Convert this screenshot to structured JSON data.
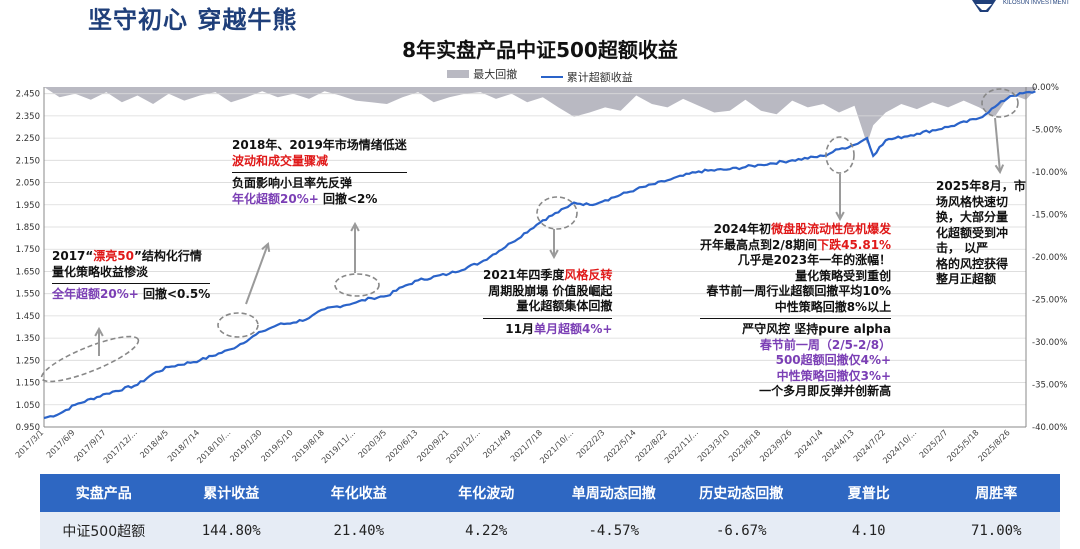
{
  "header": {
    "page_title": "坚守初心 穿越牛熊",
    "logo_text": "KILOSUN INVESTMENT"
  },
  "chart_data": {
    "type": "line",
    "title": "8年实盘产品中证500超额收益",
    "legend": [
      "最大回撤",
      "累计超额收益"
    ],
    "colors": {
      "line": "#2a63c9",
      "drawdown": "#b9b9c2",
      "grid": "#d9d9d9"
    },
    "y_left": {
      "ticks": [
        "0.950",
        "1.050",
        "1.150",
        "1.250",
        "1.350",
        "1.450",
        "1.550",
        "1.650",
        "1.750",
        "1.850",
        "1.950",
        "2.050",
        "2.150",
        "2.250",
        "2.350",
        "2.450"
      ],
      "range": [
        0.95,
        2.48
      ]
    },
    "y_right": {
      "ticks": [
        "0.00%",
        "-5.00%",
        "-10.00%",
        "-15.00%",
        "-20.00%",
        "-25.00%",
        "-30.00%",
        "-35.00%",
        "-40.00%"
      ],
      "range": [
        -40,
        0
      ]
    },
    "x_ticks": [
      "2017/3/1",
      "2017/6/9",
      "2017/9/17",
      "2017/12/...",
      "2018/4/5",
      "2018/7/14",
      "2018/10/...",
      "2019/1/30",
      "2019/5/10",
      "2019/8/18",
      "2019/11/...",
      "2020/3/5",
      "2020/6/13",
      "2020/9/21",
      "2020/12/...",
      "2021/4/9",
      "2021/7/18",
      "2021/10/...",
      "2022/2/3",
      "2022/5/14",
      "2022/8/22",
      "2022/11/...",
      "2023/3/10",
      "2023/6/18",
      "2023/9/26",
      "2024/1/4",
      "2024/4/13",
      "2024/7/22",
      "2024/10/...",
      "2025/2/7",
      "2025/5/18",
      "2025/8/26"
    ],
    "nav_points": [
      [
        0,
        0.99
      ],
      [
        0.5,
        1.01
      ],
      [
        1,
        1.05
      ],
      [
        2,
        1.1
      ],
      [
        3,
        1.14
      ],
      [
        3.5,
        1.19
      ],
      [
        4,
        1.22
      ],
      [
        5,
        1.25
      ],
      [
        6,
        1.3
      ],
      [
        7,
        1.38
      ],
      [
        7.5,
        1.41
      ],
      [
        8,
        1.42
      ],
      [
        8.5,
        1.44
      ],
      [
        9,
        1.48
      ],
      [
        10,
        1.51
      ],
      [
        10.5,
        1.53
      ],
      [
        11,
        1.54
      ],
      [
        11.5,
        1.58
      ],
      [
        12,
        1.61
      ],
      [
        13,
        1.64
      ],
      [
        14,
        1.69
      ],
      [
        15,
        1.78
      ],
      [
        16,
        1.88
      ],
      [
        16.8,
        1.94
      ],
      [
        17,
        1.96
      ],
      [
        17.5,
        1.95
      ],
      [
        18,
        1.97
      ],
      [
        19,
        2.02
      ],
      [
        20,
        2.06
      ],
      [
        21,
        2.1
      ],
      [
        22,
        2.11
      ],
      [
        23,
        2.13
      ],
      [
        24,
        2.15
      ],
      [
        25,
        2.17
      ],
      [
        25.5,
        2.2
      ],
      [
        26,
        2.22
      ],
      [
        26.4,
        2.25
      ],
      [
        26.6,
        2.17
      ],
      [
        26.8,
        2.21
      ],
      [
        27,
        2.24
      ],
      [
        28,
        2.27
      ],
      [
        29,
        2.3
      ],
      [
        30,
        2.34
      ],
      [
        30.5,
        2.39
      ],
      [
        31,
        2.44
      ],
      [
        31.8,
        2.46
      ]
    ],
    "drawdown_points": [
      [
        0,
        0
      ],
      [
        0.5,
        -1.2
      ],
      [
        1,
        -0.8
      ],
      [
        1.5,
        -1.5
      ],
      [
        2,
        -0.6
      ],
      [
        2.5,
        -1.8
      ],
      [
        3,
        -1
      ],
      [
        3.5,
        -2
      ],
      [
        4,
        -0.8
      ],
      [
        4.5,
        -1.6
      ],
      [
        5,
        -1
      ],
      [
        5.5,
        -0.6
      ],
      [
        6,
        -1.8
      ],
      [
        6.5,
        -1.2
      ],
      [
        7,
        -0.5
      ],
      [
        7.5,
        -1.2
      ],
      [
        8,
        -0.8
      ],
      [
        8.5,
        -1.4
      ],
      [
        9,
        -0.5
      ],
      [
        9.5,
        -1
      ],
      [
        10,
        -1.6
      ],
      [
        10.5,
        -1.8
      ],
      [
        11,
        -2
      ],
      [
        11.5,
        -1.2
      ],
      [
        12,
        -0.6
      ],
      [
        12.5,
        -1.8
      ],
      [
        13,
        -1.2
      ],
      [
        13.5,
        -0.8
      ],
      [
        14,
        -0.6
      ],
      [
        14.5,
        -1.4
      ],
      [
        15,
        -0.8
      ],
      [
        15.5,
        -1.8
      ],
      [
        16,
        -1.2
      ],
      [
        16.5,
        -2.4
      ],
      [
        17,
        -3.5
      ],
      [
        17.5,
        -3
      ],
      [
        18,
        -2.4
      ],
      [
        18.5,
        -2.8
      ],
      [
        19,
        -1
      ],
      [
        19.5,
        -2
      ],
      [
        20,
        -2.4
      ],
      [
        20.5,
        -1.4
      ],
      [
        21,
        -2.2
      ],
      [
        21.5,
        -3
      ],
      [
        22,
        -2.8
      ],
      [
        22.5,
        -1.5
      ],
      [
        23,
        -2.8
      ],
      [
        23.5,
        -3.2
      ],
      [
        24,
        -1.6
      ],
      [
        24.5,
        -2.4
      ],
      [
        25,
        -2
      ],
      [
        25.5,
        -3
      ],
      [
        26,
        -2.2
      ],
      [
        26.4,
        -6.7
      ],
      [
        26.6,
        -4.5
      ],
      [
        27,
        -3
      ],
      [
        27.5,
        -2
      ],
      [
        28,
        -2.6
      ],
      [
        28.5,
        -1.8
      ],
      [
        29,
        -2.4
      ],
      [
        29.5,
        -1.6
      ],
      [
        30,
        -2.4
      ],
      [
        30.5,
        -3.5
      ],
      [
        31,
        -0.8
      ],
      [
        31.5,
        -1.5
      ],
      [
        31.8,
        -0.3
      ]
    ]
  },
  "annotations": {
    "a2017": {
      "l1a": "2017“",
      "l1b": "漂亮50",
      "l1c": "”结构化行情",
      "l2": "量化策略收益惨淡",
      "l3a": "全年超额20%+",
      "l3b": " 回撤<0.5%"
    },
    "a2018": {
      "l1": "2018年、2019年市场情绪低迷",
      "l2": "波动和成交量骤减",
      "l3": "负面影响小且率先反弹",
      "l4a": "年化超额20%+",
      "l4b": " 回撤<2%"
    },
    "a2021": {
      "l1a": "2021年四季度",
      "l1b": "风格反转",
      "l2": "周期股崩塌 价值股崛起",
      "l3": "量化超额集体回撤",
      "l4a": "11月",
      "l4b": "单月超额4%+"
    },
    "a2024": {
      "l1a": "2024年初",
      "l1b": "微盘股流动性危机爆发",
      "l2a": "开年最高点到2/8期间",
      "l2b": "下跌45.81%",
      "l3": "几乎是2023年一年的涨幅！",
      "l4": "量化策略受到重创",
      "l5": "春节前一周行业超额回撤平均10%",
      "l6": "中性策略回撤8%以上",
      "l7": "严守风控 坚持pure alpha",
      "l8": "春节前一周（2/5-2/8）",
      "l9": "500超额回撤仅4%+",
      "l10": "中性策略回撤仅3%+",
      "l11": "一个多月即反弹并创新高"
    },
    "a2025": {
      "l1": "2025年8月，市",
      "l2": "场风格快速切",
      "l3": "换，大部分量",
      "l4": "化超额受到冲",
      "l5": "击，  以严",
      "l6": "格的风控获得",
      "l7": "整月正超额"
    }
  },
  "stats_table": {
    "headers": [
      "实盘产品",
      "累计收益",
      "年化收益",
      "年化波动",
      "单周动态回撤",
      "历史动态回撤",
      "夏普比",
      "周胜率"
    ],
    "row": [
      "中证500超额",
      "144.80%",
      "21.40%",
      "4.22%",
      "-4.57%",
      "-6.67%",
      "4.10",
      "71.00%"
    ]
  }
}
